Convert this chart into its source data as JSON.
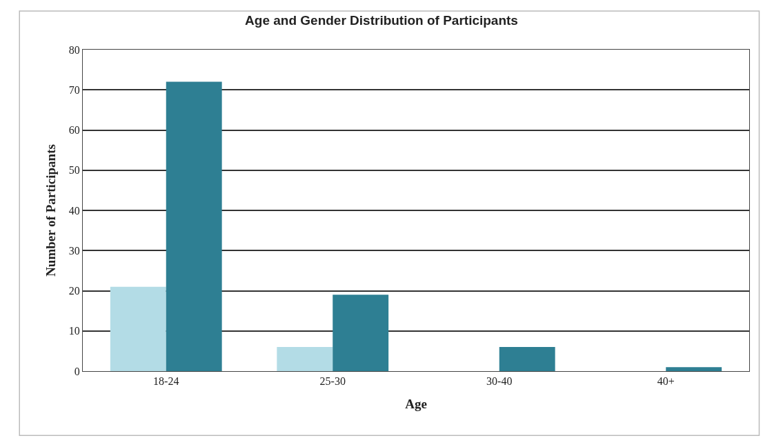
{
  "chart_data": {
    "type": "bar",
    "title": "Age and Gender Distribution of Participants",
    "xlabel": "Age",
    "ylabel": "Number of Participants",
    "categories": [
      "18-24",
      "25-30",
      "30-40",
      "40+"
    ],
    "series": [
      {
        "color": "#b3dce6",
        "values": [
          21,
          6,
          0,
          0
        ]
      },
      {
        "color": "#2e7f93",
        "values": [
          72,
          19,
          6,
          1
        ]
      }
    ],
    "ylim": [
      0,
      80
    ],
    "yticks": [
      0,
      10,
      20,
      30,
      40,
      50,
      60,
      70,
      80
    ],
    "grid": "y"
  }
}
